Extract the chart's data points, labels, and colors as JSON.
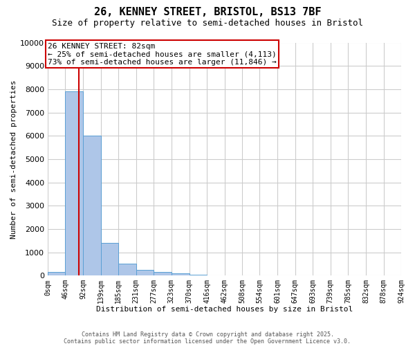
{
  "title_line1": "26, KENNEY STREET, BRISTOL, BS13 7BF",
  "title_line2": "Size of property relative to semi-detached houses in Bristol",
  "xlabel": "Distribution of semi-detached houses by size in Bristol",
  "ylabel": "Number of semi-detached properties",
  "footnote1": "Contains HM Land Registry data © Crown copyright and database right 2025.",
  "footnote2": "Contains public sector information licensed under the Open Government Licence v3.0.",
  "annotation_title": "26 KENNEY STREET: 82sqm",
  "annotation_line2": "← 25% of semi-detached houses are smaller (4,113)",
  "annotation_line3": "73% of semi-detached houses are larger (11,846) →",
  "bin_edges": [
    0,
    46,
    92,
    139,
    185,
    231,
    277,
    323,
    370,
    416,
    462,
    508,
    554,
    601,
    647,
    693,
    739,
    785,
    832,
    878,
    924
  ],
  "bar_heights": [
    150,
    7900,
    6000,
    1400,
    500,
    250,
    150,
    100,
    50,
    10,
    5,
    2,
    1,
    1,
    0,
    0,
    0,
    0,
    0,
    0
  ],
  "bar_color": "#aec6e8",
  "bar_edge_color": "#5a9fd4",
  "vline_color": "#cc0000",
  "vline_x": 82,
  "annotation_box_color": "#cc0000",
  "ylim": [
    0,
    10000
  ],
  "yticks": [
    0,
    1000,
    2000,
    3000,
    4000,
    5000,
    6000,
    7000,
    8000,
    9000,
    10000
  ],
  "tick_labels": [
    "0sqm",
    "46sqm",
    "92sqm",
    "139sqm",
    "185sqm",
    "231sqm",
    "277sqm",
    "323sqm",
    "370sqm",
    "416sqm",
    "462sqm",
    "508sqm",
    "554sqm",
    "601sqm",
    "647sqm",
    "693sqm",
    "739sqm",
    "785sqm",
    "832sqm",
    "878sqm",
    "924sqm"
  ],
  "background_color": "#ffffff",
  "grid_color": "#cccccc",
  "title_fontsize": 11,
  "subtitle_fontsize": 9,
  "ylabel_fontsize": 8,
  "xlabel_fontsize": 8,
  "annotation_fontsize": 8,
  "ytick_fontsize": 8,
  "xtick_fontsize": 7
}
